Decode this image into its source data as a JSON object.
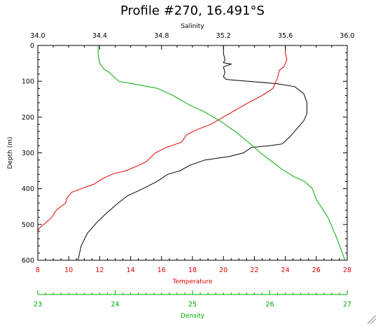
{
  "chart_data": {
    "type": "line",
    "title": "Profile #270, 16.491°S",
    "ylabel": "Depth (m)",
    "y_axis": {
      "label": "Depth (m)",
      "range": [
        0,
        600
      ],
      "inverted": true,
      "ticks": [
        0,
        100,
        200,
        300,
        400,
        500,
        600
      ]
    },
    "x_axes": [
      {
        "key": "salinity",
        "label": "Salinity",
        "position": "top",
        "color": "#000000",
        "range": [
          34.0,
          36.0
        ],
        "ticks": [
          "34.0",
          "34.4",
          "34.8",
          "35.2",
          "35.6",
          "36.0"
        ],
        "minor_step": 0.1
      },
      {
        "key": "temperature",
        "label": "Temperature",
        "position": "bottom",
        "color": "#dd0000",
        "range": [
          8,
          28
        ],
        "ticks": [
          "8",
          "10",
          "12",
          "14",
          "16",
          "18",
          "20",
          "22",
          "24",
          "26",
          "28"
        ],
        "minor_step": 0.5
      },
      {
        "key": "density",
        "label": "Density",
        "position": "bottom-offset",
        "color": "#00aa00",
        "range": [
          23,
          27
        ],
        "ticks": [
          "23",
          "24",
          "25",
          "26",
          "27"
        ],
        "minor_step": 0.1
      }
    ],
    "grid": false,
    "series": [
      {
        "name": "Salinity",
        "axis": "salinity",
        "color": "#000000",
        "points": [
          [
            35.2,
            0
          ],
          [
            35.2,
            22
          ],
          [
            35.21,
            40
          ],
          [
            35.2,
            48
          ],
          [
            35.25,
            52
          ],
          [
            35.2,
            60
          ],
          [
            35.21,
            75
          ],
          [
            35.2,
            88
          ],
          [
            35.22,
            95
          ],
          [
            35.3,
            98
          ],
          [
            35.42,
            102
          ],
          [
            35.55,
            107
          ],
          [
            35.66,
            115
          ],
          [
            35.72,
            135
          ],
          [
            35.74,
            160
          ],
          [
            35.74,
            190
          ],
          [
            35.72,
            210
          ],
          [
            35.67,
            235
          ],
          [
            35.63,
            255
          ],
          [
            35.58,
            275
          ],
          [
            35.5,
            280
          ],
          [
            35.45,
            282
          ],
          [
            35.38,
            285
          ],
          [
            35.33,
            300
          ],
          [
            35.24,
            310
          ],
          [
            35.08,
            320
          ],
          [
            34.98,
            335
          ],
          [
            34.92,
            350
          ],
          [
            34.84,
            360
          ],
          [
            34.77,
            380
          ],
          [
            34.68,
            400
          ],
          [
            34.58,
            420
          ],
          [
            34.52,
            440
          ],
          [
            34.44,
            470
          ],
          [
            34.38,
            495
          ],
          [
            34.32,
            525
          ],
          [
            34.28,
            560
          ],
          [
            34.26,
            600
          ]
        ]
      },
      {
        "name": "Temperature",
        "axis": "temperature",
        "color": "#dd0000",
        "points": [
          [
            24.0,
            0
          ],
          [
            24.0,
            20
          ],
          [
            24.1,
            40
          ],
          [
            23.9,
            60
          ],
          [
            23.6,
            70
          ],
          [
            23.5,
            90
          ],
          [
            23.2,
            120
          ],
          [
            22.5,
            140
          ],
          [
            21.6,
            160
          ],
          [
            20.8,
            180
          ],
          [
            20.0,
            200
          ],
          [
            19.2,
            220
          ],
          [
            18.3,
            235
          ],
          [
            17.6,
            250
          ],
          [
            17.3,
            270
          ],
          [
            16.3,
            285
          ],
          [
            15.6,
            300
          ],
          [
            15.0,
            325
          ],
          [
            14.5,
            335
          ],
          [
            13.7,
            350
          ],
          [
            12.9,
            358
          ],
          [
            12.2,
            372
          ],
          [
            11.6,
            388
          ],
          [
            10.8,
            400
          ],
          [
            10.2,
            410
          ],
          [
            9.9,
            425
          ],
          [
            9.8,
            440
          ],
          [
            9.2,
            460
          ],
          [
            8.9,
            480
          ],
          [
            8.4,
            500
          ],
          [
            8.1,
            510
          ],
          [
            8.0,
            520
          ]
        ]
      },
      {
        "name": "Density",
        "axis": "density",
        "color": "#00aa00",
        "points": [
          [
            23.78,
            0
          ],
          [
            23.78,
            25
          ],
          [
            23.8,
            50
          ],
          [
            23.85,
            65
          ],
          [
            23.92,
            75
          ],
          [
            23.97,
            85
          ],
          [
            24.05,
            100
          ],
          [
            24.3,
            110
          ],
          [
            24.55,
            120
          ],
          [
            24.75,
            140
          ],
          [
            24.95,
            165
          ],
          [
            25.15,
            185
          ],
          [
            25.35,
            210
          ],
          [
            25.55,
            240
          ],
          [
            25.72,
            270
          ],
          [
            25.88,
            300
          ],
          [
            26.0,
            320
          ],
          [
            26.15,
            345
          ],
          [
            26.3,
            365
          ],
          [
            26.45,
            380
          ],
          [
            26.55,
            400
          ],
          [
            26.6,
            430
          ],
          [
            26.75,
            480
          ],
          [
            26.85,
            530
          ],
          [
            26.92,
            570
          ],
          [
            26.97,
            600
          ]
        ]
      }
    ]
  }
}
